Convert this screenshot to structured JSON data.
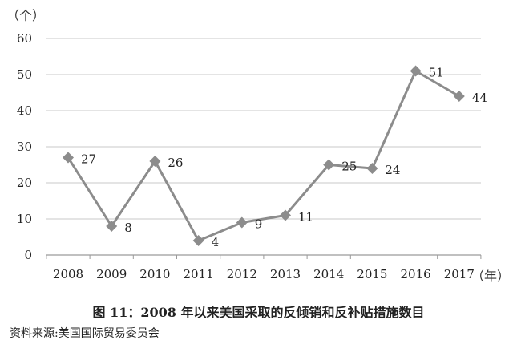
{
  "colors": {
    "series": "#8c8c8c",
    "grid": "#c8c8c8",
    "axis": "#9a9a9a",
    "text": "#222222"
  },
  "chart_data": {
    "type": "line",
    "title": "",
    "xlabel": "（年）",
    "ylabel": "（个）",
    "x": [
      "2008",
      "2009",
      "2010",
      "2011",
      "2012",
      "2013",
      "2014",
      "2015",
      "2016",
      "2017"
    ],
    "series": [
      {
        "values": [
          27,
          8,
          26,
          4,
          9,
          11,
          25,
          24,
          51,
          44
        ],
        "marker": "diamond"
      }
    ],
    "data_labels": [
      "27",
      "8",
      "26",
      "4",
      "9",
      "11",
      "25",
      "24",
      "51",
      "44"
    ],
    "ylim": [
      0,
      60
    ],
    "yticks": [
      0,
      10,
      20,
      30,
      40,
      50,
      60
    ],
    "grid": "horizontal",
    "legend": "none"
  },
  "caption": "图 11：2008 年以来美国采取的反倾销和反补贴措施数目",
  "source": "资料来源:美国国际贸易委员会"
}
